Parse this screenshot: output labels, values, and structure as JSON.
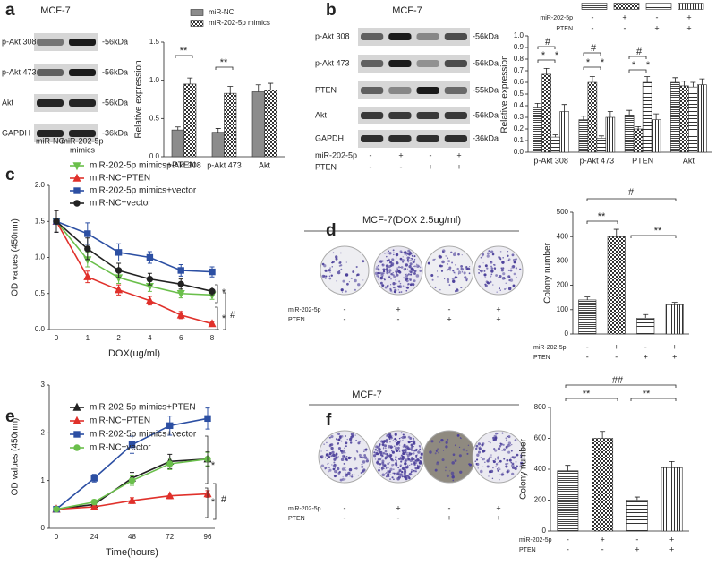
{
  "letters": [
    "a",
    "b",
    "c",
    "d",
    "e",
    "f"
  ],
  "blots": [
    {
      "title": "MCF-7",
      "rows": [
        {
          "label": "p-Akt 308",
          "size": "-56kDa"
        },
        {
          "label": "p-Akt 473",
          "size": "-56kDa"
        },
        {
          "label": "Akt",
          "size": "-56kDa"
        },
        {
          "label": "GAPDH",
          "size": "-36kDa"
        }
      ],
      "lanes": [
        [
          "miR-NC"
        ],
        [
          "miR-202-5p",
          "mimics"
        ]
      ]
    },
    {
      "title": "MCF-7",
      "rows": [
        {
          "label": "p-Akt 308",
          "size": "-56kDa"
        },
        {
          "label": "p-Akt 473",
          "size": "-56kDa"
        },
        {
          "label": "PTEN",
          "size": "-55kDa"
        },
        {
          "label": "Akt",
          "size": "-56kDa"
        },
        {
          "label": "GAPDH",
          "size": "-36kDa"
        }
      ],
      "conditions": [
        {
          "label": "miR-202-5p",
          "signs": [
            "-",
            "+",
            "-",
            "+"
          ]
        },
        {
          "label": "PTEN",
          "signs": [
            "-",
            "-",
            "+",
            "+"
          ]
        }
      ]
    }
  ],
  "dishes": [
    {
      "title": "MCF-7(DOX 2.5ug/ml)",
      "conditions": [
        {
          "label": "miR-202-5p",
          "signs": [
            "-",
            "+",
            "-",
            "+"
          ]
        },
        {
          "label": "PTEN",
          "signs": [
            "-",
            "-",
            "+",
            "+"
          ]
        }
      ]
    },
    {
      "title": "MCF-7",
      "conditions": [
        {
          "label": "miR-202-5p",
          "signs": [
            "-",
            "+",
            "-",
            "+"
          ]
        },
        {
          "label": "PTEN",
          "signs": [
            "-",
            "-",
            "+",
            "+"
          ]
        }
      ]
    }
  ],
  "chart_data": [
    {
      "type": "bar",
      "y_label": "Relative expression",
      "categories": [
        "p-Akt 308",
        "p-Akt 473",
        "Akt"
      ],
      "series": [
        {
          "name": "miR-NC",
          "color": "#8c8c8c",
          "values": [
            0.35,
            0.32,
            0.85
          ],
          "errors": [
            0.04,
            0.05,
            0.09
          ]
        },
        {
          "name": "miR-202-5p mimics",
          "color": "#ffffff",
          "pattern": "check",
          "values": [
            0.95,
            0.83,
            0.87
          ],
          "errors": [
            0.08,
            0.09,
            0.09
          ]
        }
      ],
      "ylim": [
        0,
        1.5
      ],
      "yticks": [
        {
          "value": 0,
          "label": "0.0"
        },
        0.5,
        {
          "value": 1,
          "label": "1.0"
        },
        1.5
      ],
      "annotations": [
        "**",
        "**"
      ]
    },
    {
      "type": "bar",
      "y_label": "Relative expression",
      "categories": [
        "p-Akt 308",
        "p-Akt 473",
        "PTEN",
        "Akt"
      ],
      "series": [
        {
          "color": "#ffffff",
          "pattern": "dense",
          "values": [
            0.38,
            0.28,
            0.32,
            0.6
          ],
          "errors": [
            0.04,
            0.03,
            0.04,
            0.04
          ]
        },
        {
          "color": "#ffffff",
          "pattern": "check",
          "values": [
            0.67,
            0.6,
            0.2,
            0.57
          ],
          "errors": [
            0.05,
            0.05,
            0.02,
            0.04
          ]
        },
        {
          "color": "#ffffff",
          "pattern": "hstripe",
          "values": [
            0.13,
            0.12,
            0.6,
            0.56
          ],
          "errors": [
            0.02,
            0.02,
            0.05,
            0.04
          ]
        },
        {
          "color": "#ffffff",
          "pattern": "vstripe",
          "values": [
            0.35,
            0.3,
            0.28,
            0.58
          ],
          "errors": [
            0.06,
            0.05,
            0.05,
            0.05
          ]
        }
      ],
      "conditions": [
        {
          "label": "miR-202-5p",
          "signs": [
            "-",
            "+",
            "-",
            "+"
          ]
        },
        {
          "label": "PTEN",
          "signs": [
            "-",
            "-",
            "+",
            "+"
          ]
        }
      ],
      "ylim": [
        0,
        1
      ],
      "yticks": [
        {
          "value": 0,
          "label": "0.0"
        },
        0.1,
        0.2,
        0.3,
        0.4,
        0.5,
        0.6,
        0.7,
        0.8,
        0.9,
        {
          "value": 1,
          "label": "1.0"
        }
      ],
      "annotations": [
        "#",
        "*",
        "*",
        "#",
        "*",
        "*",
        "#",
        "*",
        "*"
      ]
    },
    {
      "type": "line",
      "y_label": "OD values (450nm)",
      "x_label": "DOX(ug/ml)",
      "categories": [
        "0",
        "1",
        "2",
        "4",
        "6",
        "8"
      ],
      "series": [
        {
          "name": "miR-202-5p mimics+PTEN",
          "color": "#6abf4b",
          "marker": "tri-down",
          "values": [
            1.5,
            0.97,
            0.72,
            0.6,
            0.5,
            0.48
          ],
          "errors": [
            0.15,
            0.1,
            0.08,
            0.07,
            0.06,
            0.06
          ]
        },
        {
          "name": "miR-NC+PTEN",
          "color": "#e0312b",
          "marker": "tri-up",
          "values": [
            1.5,
            0.73,
            0.55,
            0.4,
            0.2,
            0.08
          ],
          "errors": [
            0.15,
            0.08,
            0.07,
            0.06,
            0.05,
            0.03
          ]
        },
        {
          "name": "miR-202-5p mimics+vector",
          "color": "#2c4fa3",
          "marker": "square",
          "values": [
            1.5,
            1.33,
            1.07,
            1.0,
            0.82,
            0.8
          ],
          "errors": [
            0.15,
            0.15,
            0.12,
            0.08,
            0.08,
            0.07
          ]
        },
        {
          "name": "miR-NC+vector",
          "color": "#222222",
          "marker": "circle",
          "values": [
            1.5,
            1.12,
            0.82,
            0.7,
            0.63,
            0.53
          ],
          "errors": [
            0.15,
            0.15,
            0.1,
            0.08,
            0.07,
            0.06
          ]
        }
      ],
      "ylim": [
        0,
        2
      ],
      "yticks": [
        {
          "value": 0,
          "label": "0.0"
        },
        0.5,
        {
          "value": 1,
          "label": "1.0"
        },
        1.5,
        {
          "value": 2,
          "label": "2.0"
        }
      ],
      "annotations": [
        "*",
        "*",
        "#"
      ]
    },
    {
      "type": "bar",
      "y_label": "Colony number",
      "categories": [
        null,
        null,
        null,
        null
      ],
      "series": [
        {
          "color": "#ffffff",
          "patterns": [
            "dense",
            "check",
            "hstripe",
            "vstripe"
          ],
          "values": [
            140,
            400,
            65,
            120
          ],
          "errors": [
            12,
            30,
            15,
            10
          ]
        }
      ],
      "conditions": [
        {
          "label": "miR-202-5p",
          "signs": [
            "-",
            "+",
            "-",
            "+"
          ]
        },
        {
          "label": "PTEN",
          "signs": [
            "-",
            "-",
            "+",
            "+"
          ]
        }
      ],
      "ylim": [
        0,
        500
      ],
      "yticks": [
        0,
        100,
        200,
        300,
        400,
        500
      ],
      "annotations": [
        "**",
        "**",
        "#"
      ]
    },
    {
      "type": "line",
      "y_label": "OD values (450nm)",
      "x_label": "Time(hours)",
      "categories": [
        "0",
        "24",
        "48",
        "72",
        "96"
      ],
      "series": [
        {
          "name": "miR-202-5p mimics+PTEN",
          "color": "#222222",
          "marker": "tri-up",
          "values": [
            0.4,
            0.5,
            1.05,
            1.4,
            1.45
          ],
          "errors": [
            0.03,
            0.06,
            0.12,
            0.15,
            0.15
          ]
        },
        {
          "name": "miR-NC+PTEN",
          "color": "#e0312b",
          "marker": "tri-up",
          "values": [
            0.4,
            0.45,
            0.58,
            0.68,
            0.72
          ],
          "errors": [
            0.03,
            0.04,
            0.06,
            0.06,
            0.07
          ]
        },
        {
          "name": "miR-202-5p mimics+vector",
          "color": "#2c4fa3",
          "marker": "square",
          "values": [
            0.4,
            1.05,
            1.75,
            2.15,
            2.3
          ],
          "errors": [
            0.03,
            0.08,
            0.18,
            0.2,
            0.22
          ]
        },
        {
          "name": "miR-NC+vector",
          "color": "#6abf4b",
          "marker": "circle",
          "values": [
            0.4,
            0.55,
            1.0,
            1.35,
            1.45
          ],
          "errors": [
            0.03,
            0.05,
            0.1,
            0.12,
            0.14
          ]
        }
      ],
      "ylim": [
        0,
        3
      ],
      "yticks": [
        0,
        1,
        2,
        3
      ],
      "annotations": [
        "*",
        "*",
        "#"
      ]
    },
    {
      "type": "bar",
      "y_label": "Colony number",
      "categories": [
        null,
        null,
        null,
        null
      ],
      "series": [
        {
          "color": "#ffffff",
          "patterns": [
            "dense",
            "check",
            "hstripe",
            "vstripe"
          ],
          "values": [
            390,
            600,
            200,
            410
          ],
          "errors": [
            35,
            45,
            20,
            40
          ]
        }
      ],
      "conditions": [
        {
          "label": "miR-202-5p",
          "signs": [
            "-",
            "+",
            "-",
            "+"
          ]
        },
        {
          "label": "PTEN",
          "signs": [
            "-",
            "-",
            "+",
            "+"
          ]
        }
      ],
      "ylim": [
        0,
        800
      ],
      "yticks": [
        0,
        200,
        400,
        600,
        800
      ],
      "annotations": [
        "**",
        "**",
        "##"
      ]
    }
  ]
}
